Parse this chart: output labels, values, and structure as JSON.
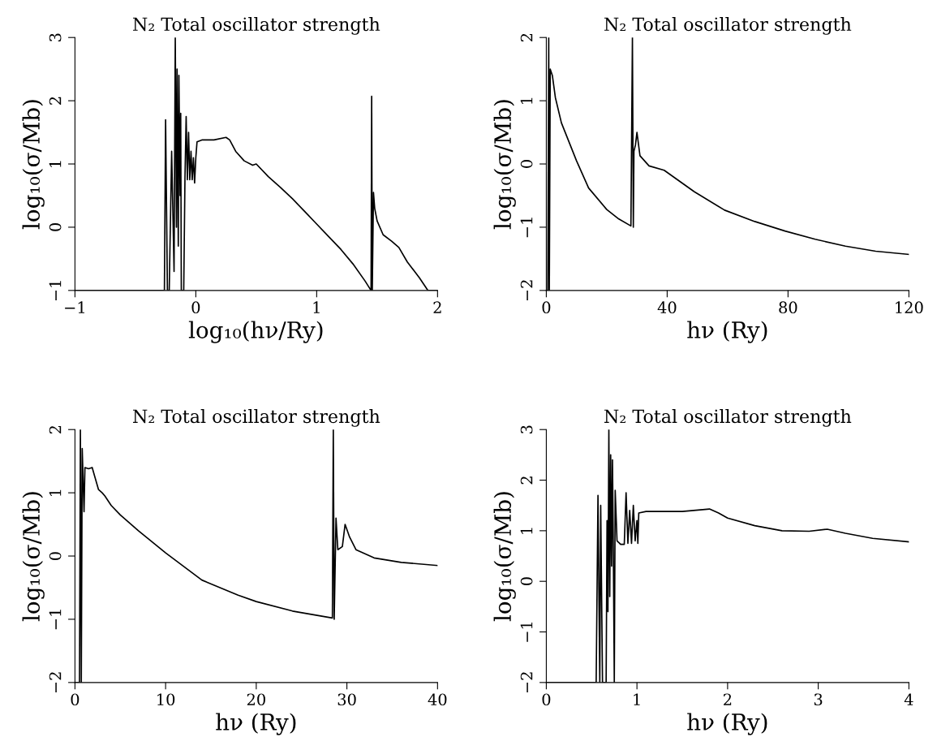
{
  "chart_data": [
    {
      "type": "line",
      "title": "N₂ Total oscillator strength",
      "xlabel": "log₁₀(hν/Ry)",
      "ylabel": "log₁₀(σ/Mb)",
      "xlim": [
        -1,
        2
      ],
      "ylim": [
        -1,
        3
      ],
      "xticks": [
        -1,
        0,
        1,
        2
      ],
      "yticks": [
        -1,
        0,
        1,
        2,
        3
      ],
      "series": [
        {
          "color": "#000000",
          "x": [
            -1,
            -0.26,
            -0.25,
            -0.235,
            -0.22,
            -0.2,
            -0.18,
            -0.17,
            -0.16,
            -0.155,
            -0.145,
            -0.14,
            -0.13,
            -0.125,
            -0.12,
            -0.1,
            -0.09,
            -0.08,
            -0.07,
            -0.06,
            -0.05,
            -0.04,
            -0.03,
            -0.02,
            -0.01,
            0.0,
            0.01,
            0.05,
            0.15,
            0.25,
            0.28,
            0.33,
            0.4,
            0.47,
            0.5,
            0.6,
            0.7,
            0.8,
            0.9,
            1.0,
            1.1,
            1.2,
            1.3,
            1.4,
            1.45,
            1.455,
            1.46,
            1.47,
            1.48,
            1.5,
            1.55,
            1.62,
            1.68,
            1.75,
            1.85,
            1.92,
            2.0
          ],
          "values": [
            -1,
            -1,
            1.7,
            -1,
            -1,
            1.2,
            -0.7,
            3.0,
            0.0,
            2.5,
            -0.3,
            2.4,
            0.5,
            1.8,
            -1,
            -1,
            0.75,
            1.75,
            0.75,
            1.5,
            0.75,
            1.2,
            0.75,
            1.1,
            0.7,
            1.1,
            1.35,
            1.38,
            1.38,
            1.42,
            1.38,
            1.2,
            1.05,
            0.98,
            1.0,
            0.8,
            0.63,
            0.45,
            0.25,
            0.05,
            -0.15,
            -0.35,
            -0.58,
            -0.85,
            -1.0,
            2.07,
            -1.0,
            0.55,
            0.3,
            0.1,
            -0.12,
            -0.22,
            -0.32,
            -0.55,
            -0.8,
            -1.0,
            -1.0
          ]
        }
      ]
    },
    {
      "type": "line",
      "title": "N₂ Total oscillator strength",
      "xlabel": "hν (Ry)",
      "ylabel": "log₁₀(σ/Mb)",
      "xlim": [
        0,
        120
      ],
      "ylim": [
        -2,
        2
      ],
      "xticks": [
        0,
        40,
        80,
        120
      ],
      "yticks": [
        -2,
        -1,
        0,
        1,
        2
      ],
      "series": [
        {
          "color": "#000000",
          "x": [
            0,
            0.5,
            0.8,
            1.0,
            1.3,
            2,
            3,
            5,
            10,
            14,
            20,
            24,
            28,
            28.5,
            28.8,
            29,
            29.5,
            30,
            31,
            34,
            39,
            49,
            59,
            69,
            79,
            89,
            99,
            109,
            120
          ],
          "values": [
            -2,
            -2,
            2,
            -2,
            1.5,
            1.4,
            1.05,
            0.65,
            0.05,
            -0.38,
            -0.72,
            -0.87,
            -0.98,
            2.0,
            -1.0,
            0.2,
            0.3,
            0.5,
            0.13,
            -0.03,
            -0.1,
            -0.44,
            -0.73,
            -0.91,
            -1.06,
            -1.19,
            -1.3,
            -1.38,
            -1.43
          ]
        }
      ]
    },
    {
      "type": "line",
      "title": "N₂ Total oscillator strength",
      "xlabel": "hν (Ry)",
      "ylabel": "log₁₀(σ/Mb)",
      "xlim": [
        0,
        40
      ],
      "ylim": [
        -2,
        2
      ],
      "xticks": [
        0,
        10,
        20,
        30,
        40
      ],
      "yticks": [
        -2,
        -1,
        0,
        1,
        2
      ],
      "series": [
        {
          "color": "#000000",
          "x": [
            0,
            0.5,
            0.6,
            0.7,
            0.8,
            1.0,
            1.1,
            1.5,
            1.9,
            2.2,
            2.6,
            3.0,
            3.3,
            4,
            5,
            7,
            10,
            14,
            18,
            20,
            24,
            28.4,
            28.5,
            28.6,
            28.8,
            29,
            29.5,
            29.8,
            30.3,
            31,
            33,
            36,
            40
          ],
          "values": [
            -2,
            -2,
            2,
            -2,
            1.7,
            0.7,
            1.4,
            1.38,
            1.4,
            1.25,
            1.05,
            1.0,
            0.95,
            0.8,
            0.65,
            0.4,
            0.05,
            -0.38,
            -0.62,
            -0.72,
            -0.87,
            -0.98,
            2.0,
            -1.0,
            0.6,
            0.1,
            0.15,
            0.5,
            0.3,
            0.1,
            -0.03,
            -0.1,
            -0.15
          ]
        }
      ]
    },
    {
      "type": "line",
      "title": "N₂ Total oscillator strength",
      "xlabel": "hν (Ry)",
      "ylabel": "log₁₀(σ/Mb)",
      "xlim": [
        0,
        4
      ],
      "ylim": [
        -2,
        3
      ],
      "xticks": [
        0,
        1,
        2,
        3,
        4
      ],
      "yticks": [
        -2,
        -1,
        0,
        1,
        2,
        3
      ],
      "series": [
        {
          "color": "#000000",
          "x": [
            0,
            0.55,
            0.57,
            0.59,
            0.6,
            0.62,
            0.66,
            0.67,
            0.68,
            0.69,
            0.7,
            0.71,
            0.72,
            0.73,
            0.74,
            0.75,
            0.76,
            0.78,
            0.82,
            0.86,
            0.88,
            0.9,
            0.92,
            0.94,
            0.96,
            0.98,
            1.0,
            1.01,
            1.02,
            1.1,
            1.5,
            1.8,
            1.9,
            2.0,
            2.3,
            2.6,
            2.9,
            3.1,
            3.3,
            3.6,
            4.0
          ],
          "values": [
            -2,
            -2,
            1.7,
            -2,
            1.5,
            -2,
            -2,
            1.2,
            -0.6,
            3.0,
            -0.3,
            2.5,
            0.3,
            2.4,
            0.5,
            -2,
            1.8,
            0.8,
            0.73,
            0.73,
            1.75,
            0.75,
            1.4,
            0.75,
            1.5,
            0.8,
            1.2,
            0.75,
            1.35,
            1.38,
            1.38,
            1.43,
            1.35,
            1.25,
            1.1,
            1.0,
            0.99,
            1.03,
            0.95,
            0.85,
            0.78
          ]
        }
      ]
    }
  ]
}
